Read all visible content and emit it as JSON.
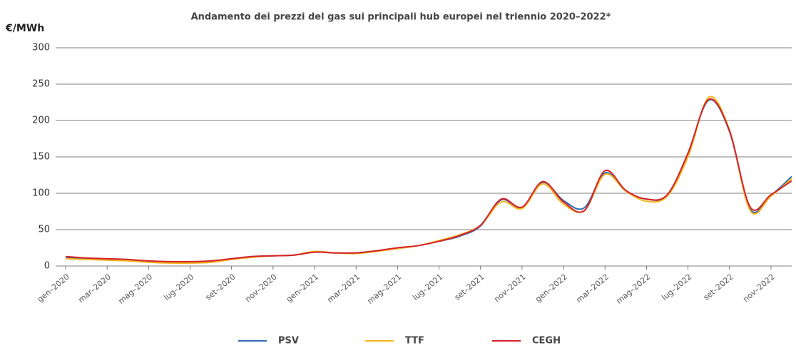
{
  "chart_data": {
    "type": "line",
    "title": "Andamento dei prezzi del gas sui principali hub europei nel triennio 2020–2022*",
    "y_label": "€/MWh",
    "categories": [
      "gen–2020",
      null,
      "mar–2020",
      null,
      "mag–2020",
      null,
      "lug–2020",
      null,
      "set–2020",
      null,
      "nov–2020",
      null,
      "gen–2021",
      null,
      "mar–2021",
      null,
      "mag–2021",
      null,
      "lug–2021",
      null,
      "set–2021",
      null,
      "nov–2021",
      null,
      "gen–2022",
      null,
      "mar–2022",
      null,
      "mag–2022",
      null,
      "lug–2022",
      null,
      "set–2022",
      null,
      "nov–2022",
      null
    ],
    "series": [
      {
        "name": "PSV",
        "color": "#2e6bb0",
        "values": [
          12,
          10,
          9,
          8,
          6,
          5,
          5,
          6,
          10,
          13,
          14,
          15,
          19,
          18,
          18,
          21,
          24,
          28,
          34,
          41,
          55,
          91,
          80,
          115,
          90,
          80,
          128,
          103,
          92,
          97,
          155,
          228,
          185,
          78,
          97,
          123
        ]
      },
      {
        "name": "TTF",
        "color": "#f5b61b",
        "values": [
          10,
          9,
          8,
          7,
          5,
          4,
          4,
          5,
          9,
          12,
          14,
          15,
          20,
          18,
          17,
          20,
          24,
          28,
          35,
          43,
          56,
          88,
          79,
          113,
          85,
          76,
          126,
          103,
          89,
          96,
          150,
          232,
          187,
          76,
          96,
          120
        ]
      },
      {
        "name": "CEGH",
        "color": "#d8232a",
        "values": [
          13,
          11,
          10,
          9,
          7,
          6,
          6,
          7,
          10,
          13,
          14,
          15,
          19,
          18,
          18,
          21,
          25,
          28,
          34,
          42,
          56,
          92,
          81,
          116,
          88,
          76,
          131,
          104,
          92,
          98,
          155,
          229,
          186,
          81,
          98,
          117
        ]
      }
    ],
    "ylim": [
      0,
      300
    ],
    "yticks": [
      0,
      50,
      100,
      150,
      200,
      250,
      300
    ],
    "grid": true,
    "legend": "bottom"
  }
}
